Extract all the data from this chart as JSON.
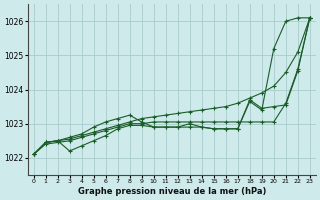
{
  "xlabel": "Graphe pression niveau de la mer (hPa)",
  "bg_color": "#ceeaea",
  "grid_color": "#a8cccc",
  "line_color": "#1a5c2a",
  "xlim": [
    -0.5,
    23.5
  ],
  "ylim": [
    1021.5,
    1026.5
  ],
  "yticks": [
    1022,
    1023,
    1024,
    1025,
    1026
  ],
  "xticks": [
    0,
    1,
    2,
    3,
    4,
    5,
    6,
    7,
    8,
    9,
    10,
    11,
    12,
    13,
    14,
    15,
    16,
    17,
    18,
    19,
    20,
    21,
    22,
    23
  ],
  "series": [
    [
      1022.1,
      1022.45,
      1022.5,
      1022.55,
      1022.65,
      1022.75,
      1022.85,
      1022.95,
      1023.05,
      1023.15,
      1023.2,
      1023.25,
      1023.3,
      1023.35,
      1023.4,
      1023.45,
      1023.5,
      1023.6,
      1023.75,
      1023.9,
      1024.1,
      1024.5,
      1025.1,
      1026.1
    ],
    [
      1022.1,
      1022.4,
      1022.45,
      1022.5,
      1022.6,
      1022.7,
      1022.8,
      1022.9,
      1023.0,
      1023.0,
      1023.05,
      1023.05,
      1023.05,
      1023.05,
      1023.05,
      1023.05,
      1023.05,
      1023.05,
      1023.05,
      1023.05,
      1023.05,
      1023.6,
      1024.6,
      1026.1
    ],
    [
      1022.1,
      1022.45,
      1022.5,
      1022.2,
      1022.35,
      1022.5,
      1022.65,
      1022.85,
      1022.95,
      1022.95,
      1022.9,
      1022.9,
      1022.9,
      1022.9,
      1022.9,
      1022.85,
      1022.85,
      1022.85,
      1023.65,
      1023.4,
      1025.2,
      1026.0,
      1026.1,
      1026.1
    ],
    [
      1022.1,
      1022.45,
      1022.5,
      1022.6,
      1022.7,
      1022.9,
      1023.05,
      1023.15,
      1023.25,
      1023.05,
      1022.9,
      1022.9,
      1022.9,
      1023.0,
      1022.9,
      1022.85,
      1022.85,
      1022.85,
      1023.7,
      1023.45,
      1023.5,
      1023.55,
      1024.55,
      1026.1
    ]
  ]
}
